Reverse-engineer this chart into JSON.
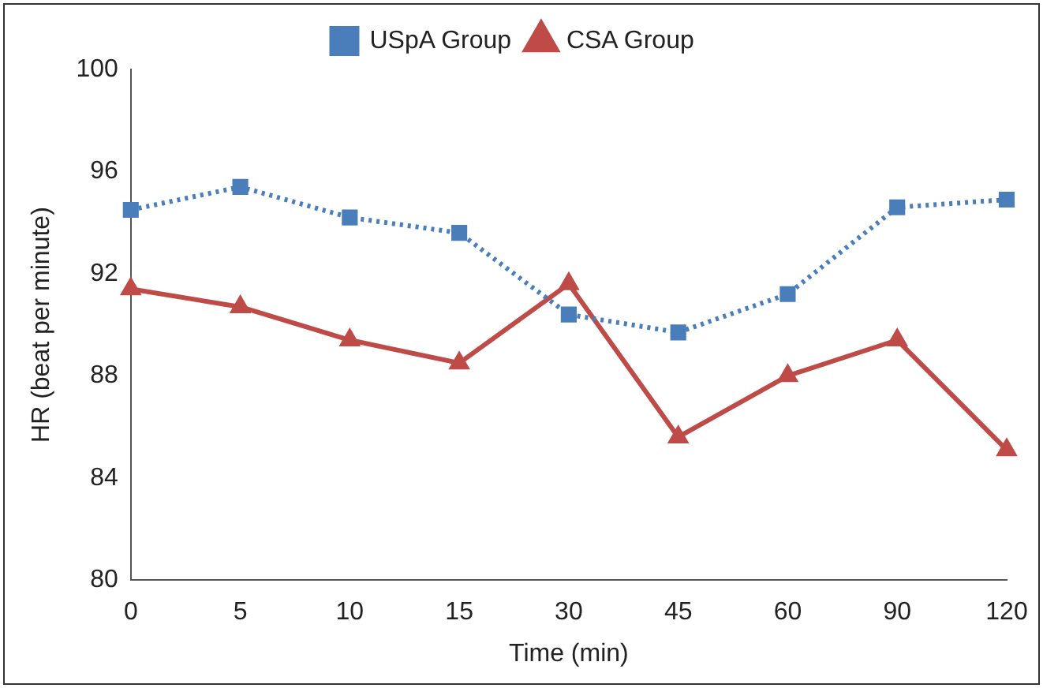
{
  "chart_data": {
    "type": "line",
    "xlabel": "Time (min)",
    "ylabel": "HR (beat per minute)",
    "categories": [
      "0",
      "5",
      "10",
      "15",
      "30",
      "45",
      "60",
      "90",
      "120"
    ],
    "series": [
      {
        "name": "USpA Group",
        "color": "#4a7ebb",
        "marker": "square",
        "line_style": "dotted",
        "values": [
          94.5,
          95.4,
          94.2,
          93.6,
          90.4,
          89.7,
          91.2,
          94.6,
          94.9
        ]
      },
      {
        "name": "CSA Group",
        "color": "#be4b48",
        "marker": "triangle",
        "line_style": "solid",
        "values": [
          91.4,
          90.7,
          89.4,
          88.5,
          91.6,
          85.6,
          88.0,
          89.4,
          85.1
        ]
      }
    ],
    "ylim": [
      80,
      100
    ],
    "yticks": [
      80,
      84,
      88,
      92,
      96,
      100
    ],
    "grid": false,
    "legend": "top"
  }
}
